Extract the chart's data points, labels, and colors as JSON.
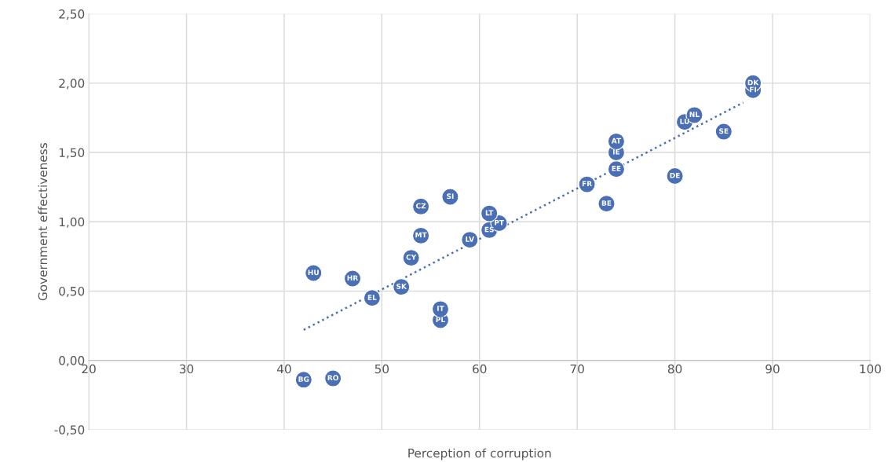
{
  "chart_data": {
    "type": "scatter",
    "xlabel": "Perception of corruption",
    "ylabel": "Government effectiveness",
    "x": [
      88,
      88,
      82,
      81,
      85,
      74,
      74,
      74,
      80,
      71,
      73,
      57,
      54,
      61,
      62,
      61,
      59,
      54,
      53,
      43,
      47,
      52,
      49,
      56,
      56,
      42,
      45
    ],
    "series": [
      {
        "color": "#4a6fb5",
        "values": [
          2.0,
          1.95,
          1.77,
          1.72,
          1.65,
          1.58,
          1.5,
          1.38,
          1.33,
          1.27,
          1.13,
          1.18,
          1.11,
          1.06,
          0.99,
          0.94,
          0.87,
          0.9,
          0.74,
          0.63,
          0.59,
          0.53,
          0.45,
          0.37,
          0.29,
          -0.14,
          -0.13
        ]
      },
      {
        "type": "line",
        "color": "#4a6fb5",
        "line_style": "dotted",
        "marker": "none",
        "x": [
          42,
          87
        ],
        "values": [
          0.22,
          1.86
        ]
      }
    ],
    "annotations": [
      {
        "text": "DK",
        "x": 88,
        "y": 2.0
      },
      {
        "text": "FI",
        "x": 88,
        "y": 1.95
      },
      {
        "text": "NL",
        "x": 82,
        "y": 1.77
      },
      {
        "text": "LU",
        "x": 81,
        "y": 1.72
      },
      {
        "text": "SE",
        "x": 85,
        "y": 1.65
      },
      {
        "text": "AT",
        "x": 74,
        "y": 1.58
      },
      {
        "text": "IE",
        "x": 74,
        "y": 1.5
      },
      {
        "text": "EE",
        "x": 74,
        "y": 1.38
      },
      {
        "text": "DE",
        "x": 80,
        "y": 1.33
      },
      {
        "text": "FR",
        "x": 71,
        "y": 1.27
      },
      {
        "text": "BE",
        "x": 73,
        "y": 1.13
      },
      {
        "text": "SI",
        "x": 57,
        "y": 1.18
      },
      {
        "text": "CZ",
        "x": 54,
        "y": 1.11
      },
      {
        "text": "LT",
        "x": 61,
        "y": 1.06
      },
      {
        "text": "PT",
        "x": 62,
        "y": 0.99
      },
      {
        "text": "ES",
        "x": 61,
        "y": 0.94
      },
      {
        "text": "LV",
        "x": 59,
        "y": 0.87
      },
      {
        "text": "MT",
        "x": 54,
        "y": 0.9
      },
      {
        "text": "CY",
        "x": 53,
        "y": 0.74
      },
      {
        "text": "HU",
        "x": 43,
        "y": 0.63
      },
      {
        "text": "HR",
        "x": 47,
        "y": 0.59
      },
      {
        "text": "SK",
        "x": 52,
        "y": 0.53
      },
      {
        "text": "EL",
        "x": 49,
        "y": 0.45
      },
      {
        "text": "IT",
        "x": 56,
        "y": 0.37
      },
      {
        "text": "PL",
        "x": 56,
        "y": 0.29
      },
      {
        "text": "BG",
        "x": 42,
        "y": -0.14
      },
      {
        "text": "RO",
        "x": 45,
        "y": -0.13
      }
    ],
    "marker": "circle",
    "xlim": [
      20,
      100
    ],
    "xticks": [
      20,
      30,
      40,
      50,
      60,
      70,
      80,
      90,
      100
    ],
    "ylim": [
      -0.5,
      2.5
    ],
    "yticks": [
      {
        "value": -0.5,
        "label": "-0,50"
      },
      {
        "value": 0,
        "label": "0,00"
      },
      {
        "value": 0.5,
        "label": "0,50"
      },
      {
        "value": 1.0,
        "label": "1,00"
      },
      {
        "value": 1.5,
        "label": "1,50"
      },
      {
        "value": 2.0,
        "label": "2,00"
      },
      {
        "value": 2.5,
        "label": "2,50"
      }
    ],
    "grid": true
  }
}
